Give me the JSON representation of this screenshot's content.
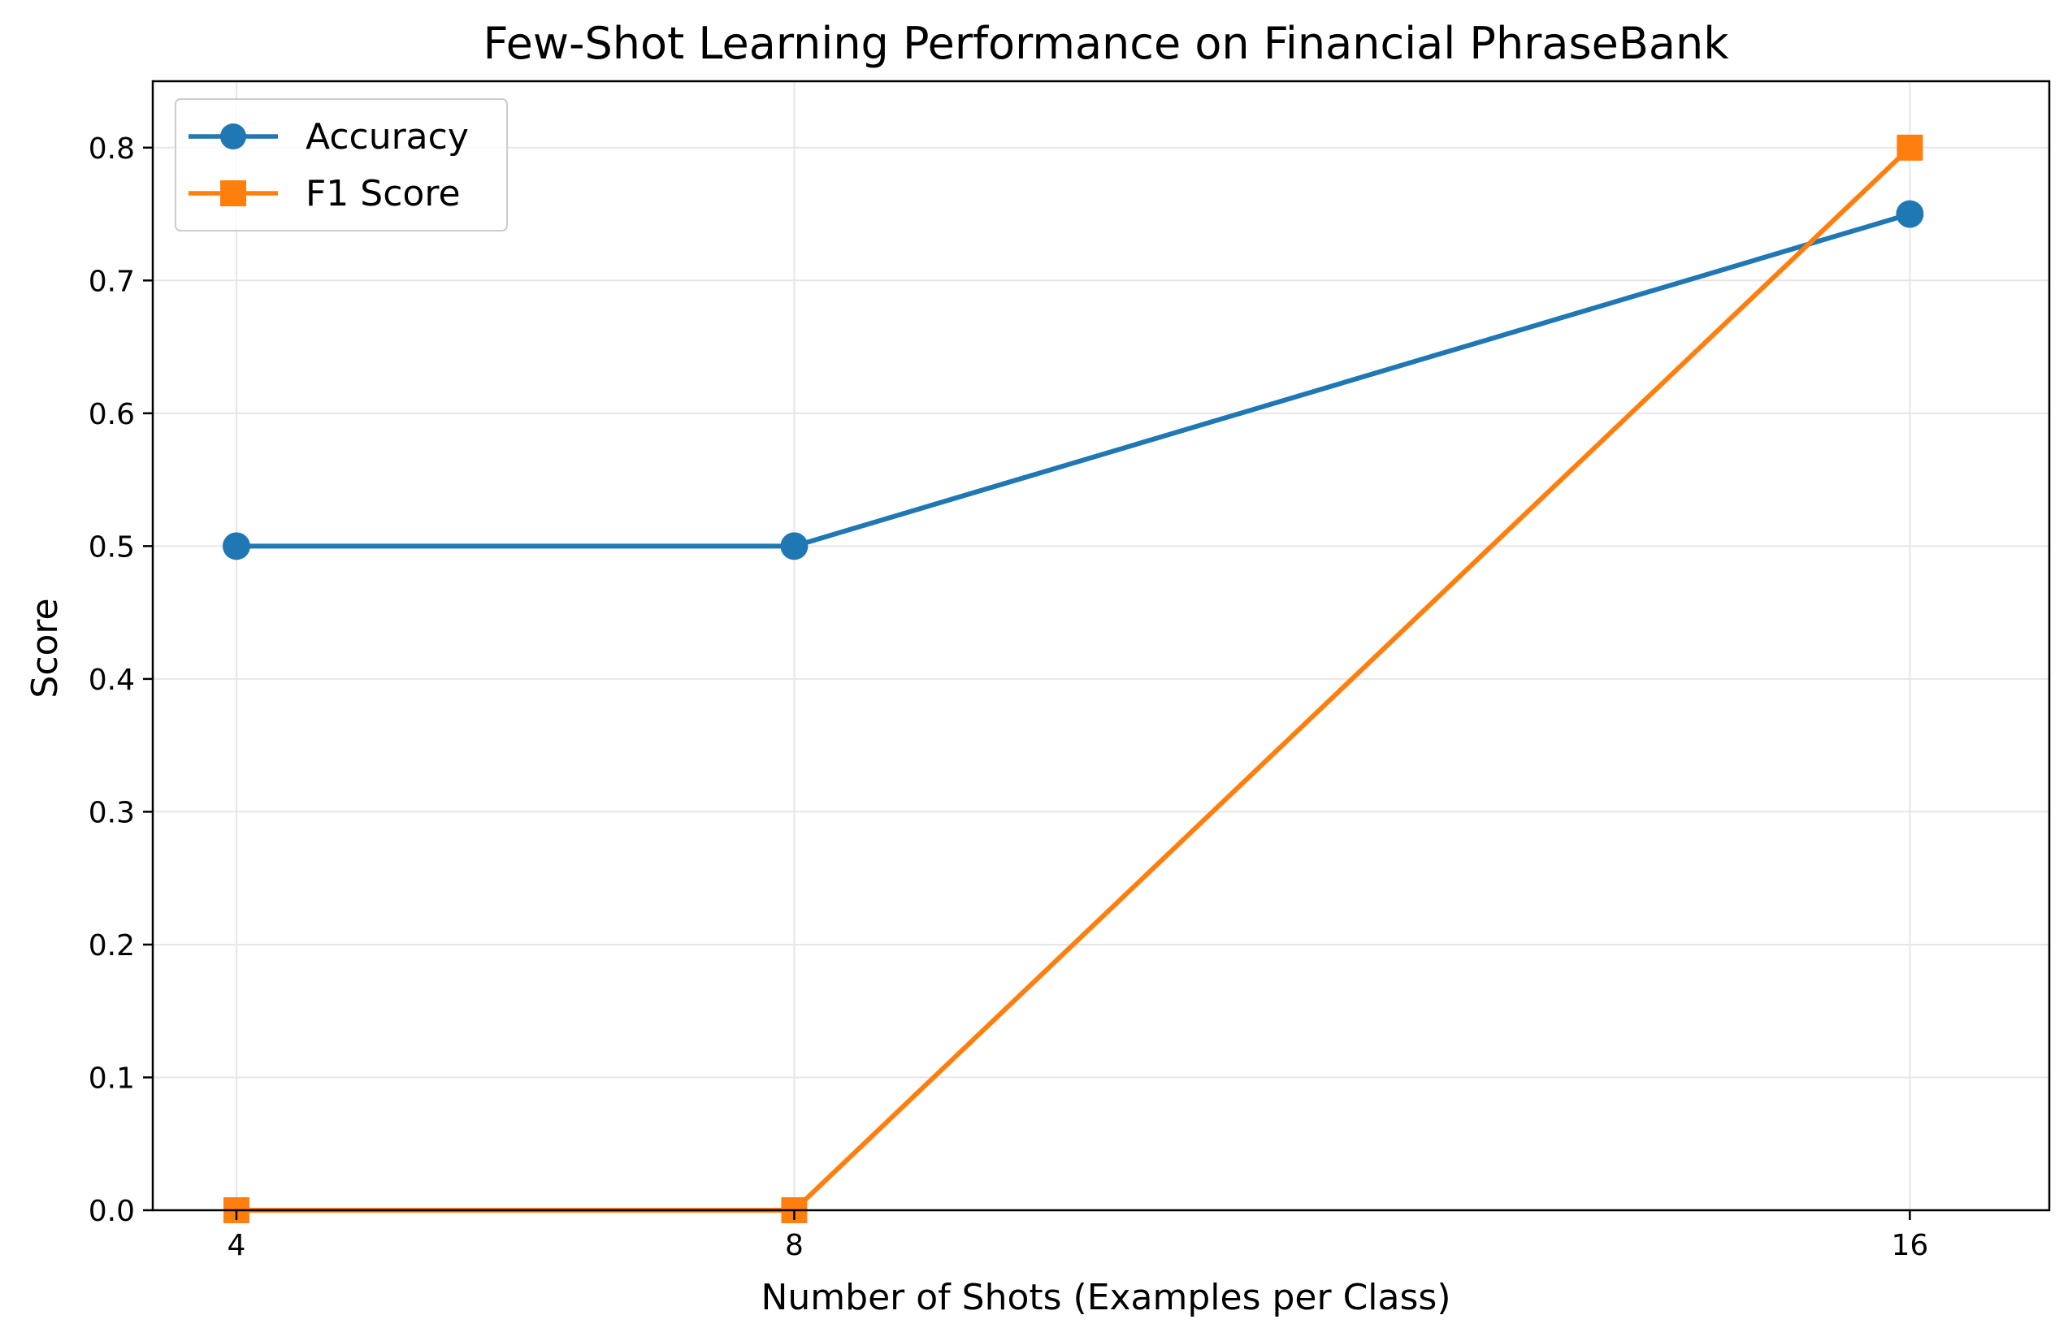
{
  "chart_data": {
    "type": "line",
    "title": "Few-Shot Learning Performance on Financial PhraseBank",
    "xlabel": "Number of Shots (Examples per Class)",
    "ylabel": "Score",
    "x": [
      4,
      8,
      16
    ],
    "xticks": [
      "4",
      "8",
      "16"
    ],
    "xlim": [
      3.4,
      17.0
    ],
    "ylim": [
      0.0,
      0.85
    ],
    "yticks": [
      "0.0",
      "0.1",
      "0.2",
      "0.3",
      "0.4",
      "0.5",
      "0.6",
      "0.7",
      "0.8"
    ],
    "grid": true,
    "legend_position": "upper-left",
    "series": [
      {
        "name": "Accuracy",
        "values": [
          0.5,
          0.5,
          0.75
        ],
        "color": "#1f77b4",
        "marker": "circle"
      },
      {
        "name": "F1 Score",
        "values": [
          0.0,
          0.0,
          0.8
        ],
        "color": "#ff7f0e",
        "marker": "square"
      }
    ]
  }
}
